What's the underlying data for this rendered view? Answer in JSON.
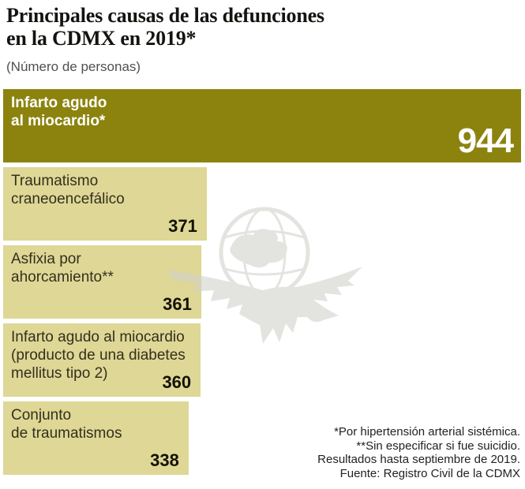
{
  "header": {
    "title": "Principales causas de las defunciones\nen la CDMX en 2019*",
    "subtitle": "(Número de personas)"
  },
  "chart_data": {
    "type": "bar",
    "orientation": "horizontal",
    "title": "Principales causas de las defunciones en la CDMX en 2019*",
    "units_label": "Número de personas",
    "xlim": [
      0,
      944
    ],
    "grid": false,
    "legend": false,
    "categories": [
      "Infarto agudo al miocardio*",
      "Traumatismo craneoencefálico",
      "Asfixia por ahorcamiento**",
      "Infarto agudo al miocardio (producto de una diabetes mellitus tipo 2)",
      "Conjunto de traumatismos"
    ],
    "values": [
      944,
      371,
      361,
      360,
      338
    ],
    "bars": [
      {
        "label": "Infarto agudo\nal miocardio*",
        "value": 944,
        "highlight": true
      },
      {
        "label": "Traumatismo\ncraneoencefálico",
        "value": 371,
        "highlight": false
      },
      {
        "label": "Asfixia por\nahorcamiento**",
        "value": 361,
        "highlight": false
      },
      {
        "label": "Infarto agudo al miocardio\n(producto de una diabetes\nmellitus tipo 2)",
        "value": 360,
        "highlight": false
      },
      {
        "label": "Conjunto\nde traumatismos",
        "value": 338,
        "highlight": false
      }
    ]
  },
  "footnotes": [
    "*Por hipertensión arterial sistémica.",
    "**Sin especificar si fue suicidio.",
    "Resultados hasta septiembre de 2019.",
    "Fuente: Registro Civil de la CDMX"
  ],
  "watermark_icon": "el-universal-eagle-globe-logo",
  "colors": {
    "bar_primary": "#8c830f",
    "bar_secondary": "#ded796",
    "label_on_primary": "#ffffff",
    "label_on_secondary": "#33301d",
    "value_on_secondary": "#141106",
    "title_text": "#151310",
    "subtitle_text": "#4f5052",
    "footnote_text": "#222222",
    "watermark": "#d2d2cc",
    "background": "#ffffff"
  }
}
